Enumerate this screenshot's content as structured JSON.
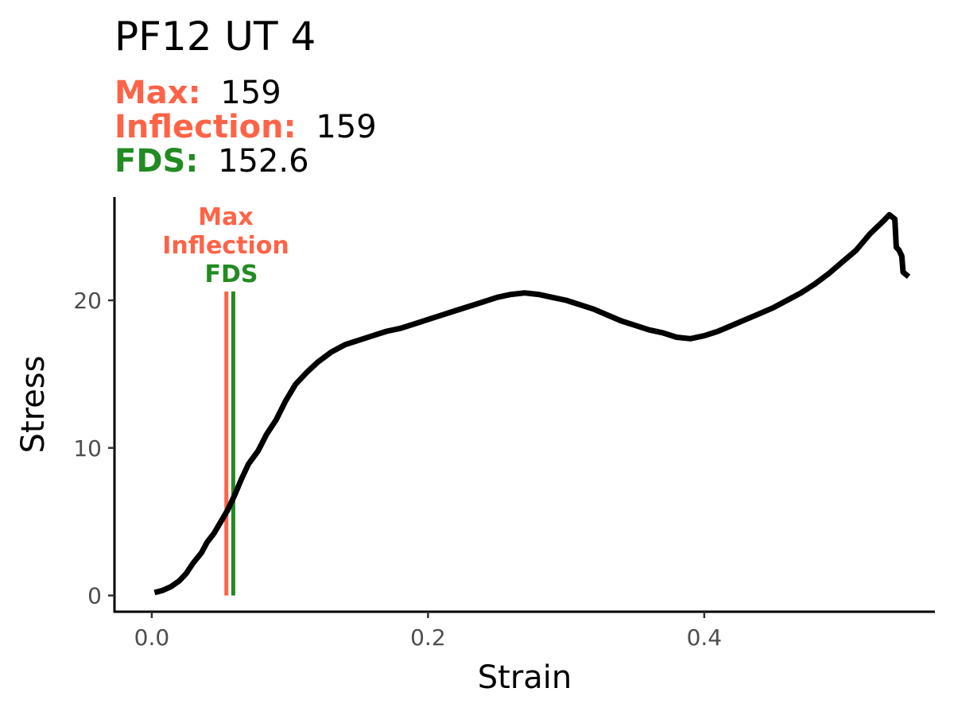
{
  "chart_data": {
    "type": "line",
    "title": "PF12 UT 4",
    "subtitle": [
      {
        "label": "Max:",
        "value": "159",
        "color": "#ff6347"
      },
      {
        "label": "Inflection:",
        "value": "159",
        "color": "#ff6347"
      },
      {
        "label": "FDS:",
        "value": "152.6",
        "color": "#228b22"
      }
    ],
    "xlabel": "Strain",
    "ylabel": "Stress",
    "xlim": [
      -0.027,
      0.567
    ],
    "ylim": [
      -1.1,
      27.0
    ],
    "xticks": [
      0.0,
      0.2,
      0.4
    ],
    "xtick_labels": [
      "0.0",
      "0.2",
      "0.4"
    ],
    "yticks": [
      0,
      10,
      20
    ],
    "ytick_labels": [
      "0",
      "10",
      "20"
    ],
    "grid": false,
    "legend": "none",
    "series": [
      {
        "color": "#000000",
        "points": [
          [
            0.002,
            0.2
          ],
          [
            0.008,
            0.35
          ],
          [
            0.014,
            0.6
          ],
          [
            0.02,
            1.0
          ],
          [
            0.025,
            1.5
          ],
          [
            0.03,
            2.2
          ],
          [
            0.036,
            2.9
          ],
          [
            0.04,
            3.6
          ],
          [
            0.045,
            4.2
          ],
          [
            0.05,
            5.0
          ],
          [
            0.055,
            5.8
          ],
          [
            0.06,
            6.8
          ],
          [
            0.065,
            7.9
          ],
          [
            0.07,
            8.9
          ],
          [
            0.077,
            9.8
          ],
          [
            0.083,
            10.9
          ],
          [
            0.09,
            11.9
          ],
          [
            0.097,
            13.2
          ],
          [
            0.104,
            14.3
          ],
          [
            0.112,
            15.1
          ],
          [
            0.12,
            15.8
          ],
          [
            0.13,
            16.5
          ],
          [
            0.14,
            17.0
          ],
          [
            0.15,
            17.3
          ],
          [
            0.16,
            17.6
          ],
          [
            0.17,
            17.9
          ],
          [
            0.18,
            18.1
          ],
          [
            0.19,
            18.4
          ],
          [
            0.2,
            18.7
          ],
          [
            0.21,
            19.0
          ],
          [
            0.22,
            19.3
          ],
          [
            0.23,
            19.6
          ],
          [
            0.24,
            19.9
          ],
          [
            0.25,
            20.2
          ],
          [
            0.26,
            20.4
          ],
          [
            0.27,
            20.5
          ],
          [
            0.28,
            20.4
          ],
          [
            0.29,
            20.2
          ],
          [
            0.3,
            20.0
          ],
          [
            0.31,
            19.7
          ],
          [
            0.32,
            19.4
          ],
          [
            0.33,
            19.0
          ],
          [
            0.34,
            18.6
          ],
          [
            0.35,
            18.3
          ],
          [
            0.36,
            18.0
          ],
          [
            0.37,
            17.8
          ],
          [
            0.38,
            17.5
          ],
          [
            0.39,
            17.4
          ],
          [
            0.4,
            17.6
          ],
          [
            0.41,
            17.9
          ],
          [
            0.42,
            18.3
          ],
          [
            0.43,
            18.7
          ],
          [
            0.44,
            19.1
          ],
          [
            0.45,
            19.5
          ],
          [
            0.46,
            20.0
          ],
          [
            0.47,
            20.5
          ],
          [
            0.48,
            21.1
          ],
          [
            0.49,
            21.8
          ],
          [
            0.5,
            22.6
          ],
          [
            0.51,
            23.4
          ],
          [
            0.52,
            24.5
          ],
          [
            0.53,
            25.4
          ],
          [
            0.534,
            25.8
          ],
          [
            0.538,
            25.5
          ],
          [
            0.539,
            23.6
          ],
          [
            0.541,
            23.4
          ],
          [
            0.543,
            23.0
          ],
          [
            0.544,
            21.9
          ],
          [
            0.548,
            21.6
          ]
        ]
      }
    ],
    "vlines": [
      {
        "x": 0.054,
        "y_top": 20.6,
        "color": "#ff6347"
      },
      {
        "x": 0.059,
        "y_top": 20.6,
        "color": "#228b22"
      }
    ],
    "annotations": [
      {
        "text": "Max",
        "color": "#ff6347"
      },
      {
        "text": "Inflection",
        "color": "#ff6347"
      },
      {
        "text": "FDS",
        "color": "#228b22"
      }
    ]
  }
}
